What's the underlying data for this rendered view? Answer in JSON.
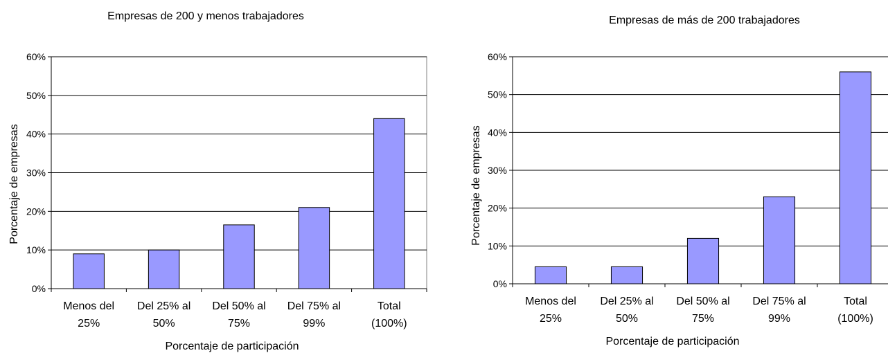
{
  "chart_data": [
    {
      "type": "bar",
      "title": "Empresas  de 200  y menos trabajadores",
      "xlabel": "Porcentaje de participación",
      "ylabel": "Porcentaje de empresas",
      "categories": [
        [
          "Menos del",
          "25%"
        ],
        [
          "Del 25% al",
          "50%"
        ],
        [
          "Del 50% al",
          "75%"
        ],
        [
          "Del 75% al",
          "99%"
        ],
        [
          "Total",
          "(100%)"
        ]
      ],
      "values": [
        9,
        10,
        16.5,
        21,
        44
      ],
      "yticks": [
        "0%",
        "10%",
        "20%",
        "30%",
        "40%",
        "50%",
        "60%"
      ],
      "ylim": [
        0,
        60
      ],
      "grid": true,
      "bar_color": "#9999ff"
    },
    {
      "type": "bar",
      "title": "Empresas de más de 200 trabajadores",
      "xlabel": "Porcentaje de participación",
      "ylabel": "Porcentaje de empresas",
      "categories": [
        [
          "Menos del",
          "25%"
        ],
        [
          "Del 25% al",
          "50%"
        ],
        [
          "Del 50% al",
          "75%"
        ],
        [
          "Del 75% al",
          "99%"
        ],
        [
          "Total",
          "(100%)"
        ]
      ],
      "values": [
        4.5,
        4.5,
        12,
        23,
        56
      ],
      "yticks": [
        "0%",
        "10%",
        "20%",
        "30%",
        "40%",
        "50%",
        "60%"
      ],
      "ylim": [
        0,
        60
      ],
      "grid": true,
      "bar_color": "#9999ff"
    }
  ]
}
